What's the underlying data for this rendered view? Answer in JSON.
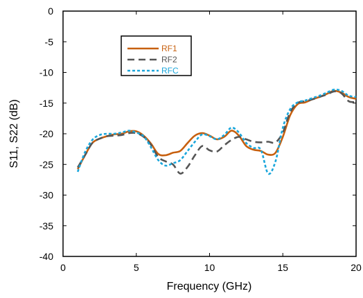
{
  "chart_data": {
    "type": "line",
    "xlabel": "Frequency (GHz)",
    "ylabel": "S11, S22 (dB)",
    "xlim": [
      0,
      20
    ],
    "ylim": [
      -40,
      0
    ],
    "x_ticks": [
      "0",
      "5",
      "10",
      "15",
      "20"
    ],
    "y_ticks": [
      "0",
      "-5",
      "-10",
      "-15",
      "-20",
      "-25",
      "-30",
      "-35",
      "-40"
    ],
    "grid": false,
    "legend_placement": "upper-left inside plot",
    "series": [
      {
        "name": "RF1",
        "color": "#C7600F",
        "style": "solid",
        "x": [
          1.0,
          1.5,
          2.0,
          2.5,
          3.0,
          3.5,
          4.0,
          4.5,
          5.0,
          5.5,
          6.0,
          6.5,
          7.0,
          7.5,
          8.0,
          8.5,
          9.0,
          9.5,
          10.0,
          10.5,
          11.0,
          11.5,
          12.0,
          12.5,
          13.0,
          13.5,
          14.0,
          14.5,
          15.0,
          15.5,
          16.0,
          16.5,
          17.0,
          17.5,
          18.0,
          18.5,
          19.0,
          19.5,
          20.0
        ],
        "y": [
          -25.8,
          -23.5,
          -21.5,
          -20.8,
          -20.4,
          -20.1,
          -20.0,
          -19.6,
          -19.6,
          -20.3,
          -21.6,
          -23.3,
          -23.5,
          -23.1,
          -22.8,
          -21.5,
          -20.3,
          -19.9,
          -20.3,
          -20.9,
          -20.5,
          -19.5,
          -20.3,
          -22.0,
          -22.6,
          -22.8,
          -23.4,
          -23.1,
          -20.5,
          -17.0,
          -15.2,
          -14.9,
          -14.4,
          -14.0,
          -13.5,
          -13.0,
          -13.3,
          -14.0,
          -14.3
        ]
      },
      {
        "name": "RF2",
        "color": "#555555",
        "style": "dashed",
        "x": [
          1.0,
          1.5,
          2.0,
          2.5,
          3.0,
          3.5,
          4.0,
          4.5,
          5.0,
          5.5,
          6.0,
          6.5,
          7.0,
          7.5,
          8.0,
          8.5,
          9.0,
          9.5,
          10.0,
          10.5,
          11.0,
          11.5,
          12.0,
          12.5,
          13.0,
          13.5,
          14.0,
          14.5,
          15.0,
          15.5,
          16.0,
          16.5,
          17.0,
          17.5,
          18.0,
          18.5,
          19.0,
          19.5,
          20.0
        ],
        "y": [
          -25.5,
          -23.5,
          -21.5,
          -20.8,
          -20.4,
          -20.3,
          -20.2,
          -19.9,
          -19.9,
          -20.5,
          -21.8,
          -23.8,
          -24.5,
          -25.0,
          -26.5,
          -25.4,
          -23.5,
          -22.0,
          -22.7,
          -22.9,
          -21.9,
          -21.0,
          -20.5,
          -20.9,
          -21.3,
          -21.4,
          -21.3,
          -21.4,
          -19.8,
          -16.5,
          -15.0,
          -14.7,
          -14.4,
          -14.0,
          -13.6,
          -13.1,
          -13.4,
          -14.7,
          -14.8
        ]
      },
      {
        "name": "RFC",
        "color": "#1AA6DB",
        "style": "dotted",
        "x": [
          1.0,
          1.5,
          2.0,
          2.5,
          3.0,
          3.5,
          4.0,
          4.5,
          5.0,
          5.5,
          6.0,
          6.5,
          7.0,
          7.5,
          8.0,
          8.5,
          9.0,
          9.5,
          10.0,
          10.5,
          11.0,
          11.5,
          12.0,
          12.5,
          13.0,
          13.5,
          14.0,
          14.5,
          15.0,
          15.5,
          16.0,
          16.5,
          17.0,
          17.5,
          18.0,
          18.5,
          19.0,
          19.5,
          20.0
        ],
        "y": [
          -26.2,
          -23.0,
          -21.0,
          -20.2,
          -20.0,
          -20.0,
          -19.8,
          -19.5,
          -19.8,
          -20.4,
          -22.2,
          -24.3,
          -25.2,
          -24.8,
          -24.3,
          -22.8,
          -21.3,
          -20.1,
          -20.4,
          -20.9,
          -20.2,
          -19.0,
          -19.8,
          -21.5,
          -22.3,
          -22.6,
          -26.5,
          -24.5,
          -19.0,
          -16.0,
          -14.9,
          -14.6,
          -14.2,
          -13.8,
          -13.3,
          -12.8,
          -13.0,
          -13.8,
          -14.0
        ]
      }
    ]
  }
}
